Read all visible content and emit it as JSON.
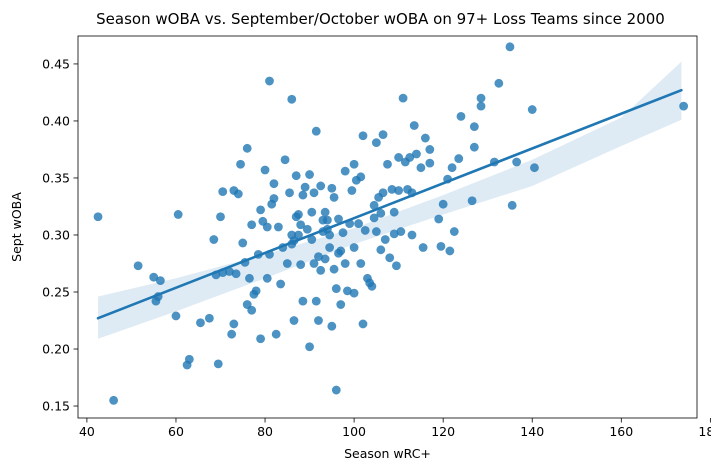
{
  "chart_data": {
    "type": "scatter",
    "title": "Season wOBA vs. September/October wOBA on 97+ Loss Teams since 2000",
    "xlabel": "Season wRC+",
    "ylabel": "Sept wOBA",
    "xlim": [
      38,
      177
    ],
    "ylim": [
      0.1395,
      0.4745
    ],
    "xticks": [
      "40",
      "60",
      "80",
      "100",
      "120",
      "140",
      "160",
      "180"
    ],
    "yticks": [
      "0.15",
      "0.20",
      "0.25",
      "0.30",
      "0.35",
      "0.40",
      "0.45"
    ],
    "grid": false,
    "colors": {
      "points": "#1f77b4",
      "line": "#1f77b4",
      "band": "#1f77b4"
    },
    "regression": {
      "x": [
        42.5,
        173.5
      ],
      "y": [
        0.227,
        0.427
      ],
      "ci": {
        "x": [
          42.5,
          60,
          80,
          100,
          120,
          140,
          160,
          173.5
        ],
        "upper": [
          0.246,
          0.262,
          0.283,
          0.306,
          0.335,
          0.366,
          0.403,
          0.452
        ],
        "lower": [
          0.209,
          0.233,
          0.262,
          0.292,
          0.318,
          0.343,
          0.378,
          0.401
        ]
      }
    },
    "points": [
      [
        42.5,
        0.316
      ],
      [
        46,
        0.155
      ],
      [
        51.5,
        0.273
      ],
      [
        55,
        0.263
      ],
      [
        55.5,
        0.242
      ],
      [
        56,
        0.246
      ],
      [
        56.5,
        0.26
      ],
      [
        60,
        0.229
      ],
      [
        60.5,
        0.318
      ],
      [
        62.5,
        0.186
      ],
      [
        63,
        0.191
      ],
      [
        65.5,
        0.223
      ],
      [
        67.5,
        0.227
      ],
      [
        68.5,
        0.296
      ],
      [
        69,
        0.265
      ],
      [
        69.5,
        0.187
      ],
      [
        70,
        0.316
      ],
      [
        70.5,
        0.338
      ],
      [
        70.5,
        0.267
      ],
      [
        72,
        0.268
      ],
      [
        72.5,
        0.213
      ],
      [
        73,
        0.222
      ],
      [
        73,
        0.339
      ],
      [
        73.5,
        0.266
      ],
      [
        74,
        0.336
      ],
      [
        74.5,
        0.362
      ],
      [
        75,
        0.293
      ],
      [
        75.5,
        0.276
      ],
      [
        76,
        0.376
      ],
      [
        76,
        0.239
      ],
      [
        76.5,
        0.262
      ],
      [
        77,
        0.234
      ],
      [
        77,
        0.309
      ],
      [
        77.5,
        0.248
      ],
      [
        78,
        0.251
      ],
      [
        78.5,
        0.283
      ],
      [
        79,
        0.209
      ],
      [
        79,
        0.322
      ],
      [
        79.5,
        0.312
      ],
      [
        80,
        0.357
      ],
      [
        80.5,
        0.307
      ],
      [
        80.5,
        0.262
      ],
      [
        81,
        0.435
      ],
      [
        81,
        0.283
      ],
      [
        81.5,
        0.327
      ],
      [
        82,
        0.345
      ],
      [
        82,
        0.332
      ],
      [
        82.5,
        0.213
      ],
      [
        83,
        0.307
      ],
      [
        83.5,
        0.257
      ],
      [
        84,
        0.289
      ],
      [
        84.5,
        0.366
      ],
      [
        85,
        0.275
      ],
      [
        85.5,
        0.337
      ],
      [
        86,
        0.419
      ],
      [
        86,
        0.3
      ],
      [
        86,
        0.292
      ],
      [
        86.5,
        0.295
      ],
      [
        86.5,
        0.225
      ],
      [
        87,
        0.352
      ],
      [
        87,
        0.316
      ],
      [
        87.5,
        0.318
      ],
      [
        87.5,
        0.3
      ],
      [
        88,
        0.274
      ],
      [
        88,
        0.309
      ],
      [
        88.5,
        0.242
      ],
      [
        88.5,
        0.335
      ],
      [
        89,
        0.342
      ],
      [
        89.5,
        0.305
      ],
      [
        90,
        0.202
      ],
      [
        90,
        0.353
      ],
      [
        90.5,
        0.32
      ],
      [
        90.5,
        0.296
      ],
      [
        91,
        0.275
      ],
      [
        91,
        0.337
      ],
      [
        91.5,
        0.391
      ],
      [
        91.5,
        0.242
      ],
      [
        92,
        0.225
      ],
      [
        92,
        0.281
      ],
      [
        92.5,
        0.343
      ],
      [
        92.5,
        0.269
      ],
      [
        93,
        0.313
      ],
      [
        93,
        0.303
      ],
      [
        93.5,
        0.279
      ],
      [
        93.5,
        0.32
      ],
      [
        94,
        0.313
      ],
      [
        94,
        0.305
      ],
      [
        94.5,
        0.3
      ],
      [
        94.5,
        0.289
      ],
      [
        95,
        0.22
      ],
      [
        95,
        0.341
      ],
      [
        95.5,
        0.27
      ],
      [
        95.5,
        0.333
      ],
      [
        96,
        0.164
      ],
      [
        96,
        0.253
      ],
      [
        96.5,
        0.284
      ],
      [
        96.5,
        0.314
      ],
      [
        97,
        0.239
      ],
      [
        97,
        0.286
      ],
      [
        97.5,
        0.302
      ],
      [
        98,
        0.356
      ],
      [
        98,
        0.275
      ],
      [
        98.5,
        0.251
      ],
      [
        99,
        0.31
      ],
      [
        99.5,
        0.339
      ],
      [
        100,
        0.249
      ],
      [
        100,
        0.362
      ],
      [
        100,
        0.289
      ],
      [
        100.5,
        0.348
      ],
      [
        101,
        0.31
      ],
      [
        101.5,
        0.351
      ],
      [
        101.5,
        0.275
      ],
      [
        102,
        0.222
      ],
      [
        102,
        0.387
      ],
      [
        102.5,
        0.304
      ],
      [
        103,
        0.262
      ],
      [
        103.5,
        0.258
      ],
      [
        104,
        0.255
      ],
      [
        104.5,
        0.326
      ],
      [
        104.5,
        0.315
      ],
      [
        105,
        0.381
      ],
      [
        105,
        0.303
      ],
      [
        105.5,
        0.333
      ],
      [
        106,
        0.287
      ],
      [
        106,
        0.319
      ],
      [
        106.5,
        0.388
      ],
      [
        106.5,
        0.337
      ],
      [
        107,
        0.296
      ],
      [
        107.5,
        0.362
      ],
      [
        108,
        0.28
      ],
      [
        108.5,
        0.34
      ],
      [
        109,
        0.301
      ],
      [
        109,
        0.32
      ],
      [
        109.5,
        0.273
      ],
      [
        110,
        0.368
      ],
      [
        110,
        0.339
      ],
      [
        110.5,
        0.303
      ],
      [
        111,
        0.42
      ],
      [
        111.5,
        0.364
      ],
      [
        112,
        0.34
      ],
      [
        112.5,
        0.368
      ],
      [
        113,
        0.337
      ],
      [
        113,
        0.3
      ],
      [
        113.5,
        0.396
      ],
      [
        114,
        0.371
      ],
      [
        115,
        0.359
      ],
      [
        115.5,
        0.289
      ],
      [
        116,
        0.385
      ],
      [
        117,
        0.363
      ],
      [
        117,
        0.375
      ],
      [
        119,
        0.314
      ],
      [
        119.5,
        0.29
      ],
      [
        120,
        0.327
      ],
      [
        121,
        0.349
      ],
      [
        121.5,
        0.286
      ],
      [
        122,
        0.359
      ],
      [
        122.5,
        0.303
      ],
      [
        123.5,
        0.367
      ],
      [
        124,
        0.404
      ],
      [
        126.5,
        0.33
      ],
      [
        127,
        0.377
      ],
      [
        127,
        0.395
      ],
      [
        128.5,
        0.42
      ],
      [
        128.5,
        0.413
      ],
      [
        131.5,
        0.364
      ],
      [
        132.5,
        0.433
      ],
      [
        135,
        0.465
      ],
      [
        135.5,
        0.326
      ],
      [
        136.5,
        0.364
      ],
      [
        140,
        0.41
      ],
      [
        140.5,
        0.359
      ],
      [
        174,
        0.413
      ]
    ]
  }
}
